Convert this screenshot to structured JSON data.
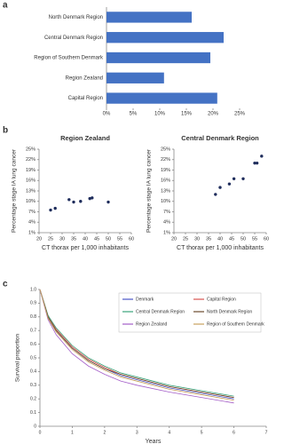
{
  "chart_data": [
    {
      "label": "a",
      "type": "bar",
      "orientation": "horizontal",
      "categories": [
        "North Denmark Region",
        "Central Denmark Region",
        "Region of Southern Denmark",
        "Region Zealand",
        "Capital Region"
      ],
      "values": [
        16,
        22,
        19.5,
        10.8,
        20.8
      ],
      "color": "#4472c4",
      "xlim": [
        0,
        25
      ],
      "xticks": [
        {
          "value": 0,
          "label": "0%"
        },
        {
          "value": 5,
          "label": "5%"
        },
        {
          "value": 10,
          "label": "10%"
        },
        {
          "value": 15,
          "label": "15%"
        },
        {
          "value": 20,
          "label": "20%"
        },
        {
          "value": 25,
          "label": "25%"
        }
      ]
    },
    {
      "label": "b",
      "type": "scatter",
      "title": "Region Zealand",
      "x_label": "CT thorax per 1,000 inhabitants",
      "y_label": "Percentage stage IA lung cancer",
      "x": [
        25,
        27,
        33,
        35,
        38,
        42,
        43,
        50
      ],
      "values": [
        7.5,
        8,
        10.5,
        9.8,
        10,
        10.8,
        11,
        9.8
      ],
      "color": "#1f2d5c",
      "xlim": [
        20,
        60
      ],
      "xticks": [
        20,
        25,
        30,
        35,
        40,
        45,
        50,
        55,
        60
      ],
      "ylim": [
        1,
        25
      ],
      "yticks": [
        {
          "value": 1,
          "label": "1%"
        },
        {
          "value": 4,
          "label": "4%"
        },
        {
          "value": 7,
          "label": "7%"
        },
        {
          "value": 10,
          "label": "10%"
        },
        {
          "value": 13,
          "label": "13%"
        },
        {
          "value": 16,
          "label": "16%"
        },
        {
          "value": 19,
          "label": "19%"
        },
        {
          "value": 22,
          "label": "22%"
        },
        {
          "value": 25,
          "label": "25%"
        }
      ]
    },
    {
      "type": "scatter",
      "title": "Central Denmark Region",
      "x_label": "CT thorax per 1,000 inhabitants",
      "y_label": "Percentage stage IA lung cancer",
      "x": [
        38,
        40,
        44,
        46,
        50,
        55,
        56,
        58
      ],
      "values": [
        12,
        14,
        15,
        16.5,
        16.5,
        21,
        21,
        23
      ],
      "color": "#1f2d5c",
      "xlim": [
        20,
        60
      ],
      "xticks": [
        20,
        25,
        30,
        35,
        40,
        45,
        50,
        55,
        60
      ],
      "ylim": [
        1,
        25
      ],
      "yticks": [
        {
          "value": 1,
          "label": "1%"
        },
        {
          "value": 4,
          "label": "4%"
        },
        {
          "value": 7,
          "label": "7%"
        },
        {
          "value": 10,
          "label": "10%"
        },
        {
          "value": 13,
          "label": "13%"
        },
        {
          "value": 16,
          "label": "16%"
        },
        {
          "value": 19,
          "label": "19%"
        },
        {
          "value": 22,
          "label": "22%"
        },
        {
          "value": 25,
          "label": "25%"
        }
      ]
    },
    {
      "label": "c",
      "type": "line",
      "x_label": "Years",
      "y_label": "Survival proportion",
      "legend": "top-right",
      "x": [
        0,
        0.25,
        0.5,
        1,
        1.5,
        2,
        2.5,
        3,
        4,
        5,
        6
      ],
      "series": [
        {
          "name": "Denmark",
          "color": "#4a55c8",
          "values": [
            1.0,
            0.8,
            0.7,
            0.57,
            0.48,
            0.42,
            0.37,
            0.34,
            0.28,
            0.24,
            0.2
          ]
        },
        {
          "name": "Capital Region",
          "color": "#d9534f",
          "values": [
            1.0,
            0.81,
            0.71,
            0.58,
            0.49,
            0.43,
            0.38,
            0.35,
            0.29,
            0.25,
            0.21
          ]
        },
        {
          "name": "Central Denmark Region",
          "color": "#3aa37a",
          "values": [
            1.0,
            0.81,
            0.72,
            0.59,
            0.5,
            0.44,
            0.39,
            0.36,
            0.3,
            0.26,
            0.22
          ]
        },
        {
          "name": "North Denmark Region",
          "color": "#6b4a2b",
          "values": [
            1.0,
            0.8,
            0.7,
            0.57,
            0.48,
            0.42,
            0.38,
            0.35,
            0.29,
            0.25,
            0.21
          ]
        },
        {
          "name": "Region Zealand",
          "color": "#a45ec9",
          "values": [
            1.0,
            0.78,
            0.67,
            0.53,
            0.44,
            0.38,
            0.33,
            0.3,
            0.25,
            0.21,
            0.17
          ]
        },
        {
          "name": "Region of Southern Denmark",
          "color": "#c9a25e",
          "values": [
            1.0,
            0.79,
            0.69,
            0.56,
            0.47,
            0.41,
            0.36,
            0.33,
            0.27,
            0.23,
            0.19
          ]
        }
      ],
      "xlim": [
        0,
        7
      ],
      "xticks": [
        0,
        1,
        2,
        3,
        4,
        5,
        6,
        7
      ],
      "ylim": [
        0,
        1
      ],
      "yticks": [
        0,
        0.1,
        0.2,
        0.3,
        0.4,
        0.5,
        0.6,
        0.7,
        0.8,
        0.9,
        {
          "value": 1,
          "label": "1.0"
        }
      ]
    }
  ]
}
